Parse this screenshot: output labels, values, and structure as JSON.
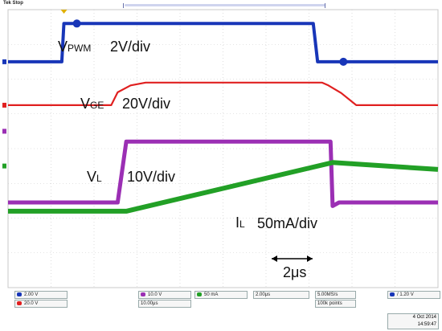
{
  "header": {
    "label": "Tek Stop"
  },
  "annotations": {
    "vpwm": {
      "main": "V",
      "sub": "PWM",
      "scale": "2V/div"
    },
    "vge": {
      "main": "V",
      "sub": "GE",
      "scale": "20V/div"
    },
    "vl": {
      "main": "V",
      "sub": "L",
      "scale": "10V/div"
    },
    "il": {
      "main": "I",
      "sub": "L",
      "scale": "50mA/div"
    },
    "time": "2μs"
  },
  "status": {
    "ch1": "2.00 V",
    "ch2": "20.0 V",
    "ch3": "10.0 V",
    "ch4": "50 mA",
    "timebase": "2.00μs",
    "delay": "10.00μs",
    "sample": "5.00MS/s",
    "points": "100k points",
    "trigger": "1.20 V",
    "date": "4 Oct 2014",
    "time": "14:59:47"
  },
  "colors": {
    "vpwm": "#1836b8",
    "vge": "#e02020",
    "vl": "#9b2fb4",
    "il": "#22a026",
    "grid": "#c8c8c8"
  },
  "chart_data": {
    "type": "line",
    "x_unit": "div",
    "y_unit": "div",
    "xlim": [
      0,
      10
    ],
    "ylim": [
      -4,
      4
    ],
    "grid": true,
    "series": [
      {
        "name": "VPWM",
        "color": "#1836b8",
        "x": [
          0,
          1.25,
          1.3,
          7.1,
          7.2,
          10
        ],
        "y": [
          2.5,
          2.5,
          3.6,
          3.6,
          2.5,
          2.5
        ]
      },
      {
        "name": "VGE",
        "color": "#e02020",
        "x": [
          0,
          2.4,
          2.55,
          2.85,
          3.2,
          7.3,
          7.45,
          7.75,
          8.1,
          10
        ],
        "y": [
          1.25,
          1.25,
          1.62,
          1.82,
          1.9,
          1.9,
          1.82,
          1.6,
          1.25,
          1.25
        ]
      },
      {
        "name": "VL",
        "color": "#9b2fb4",
        "x": [
          0,
          2.55,
          2.75,
          7.5,
          7.55,
          7.7,
          10
        ],
        "y": [
          -1.55,
          -1.55,
          0.2,
          0.2,
          -1.65,
          -1.55,
          -1.55
        ]
      },
      {
        "name": "IL",
        "color": "#22a026",
        "x": [
          0,
          2.75,
          7.55,
          10
        ],
        "y": [
          -1.8,
          -1.8,
          -0.4,
          -0.6
        ]
      }
    ]
  }
}
